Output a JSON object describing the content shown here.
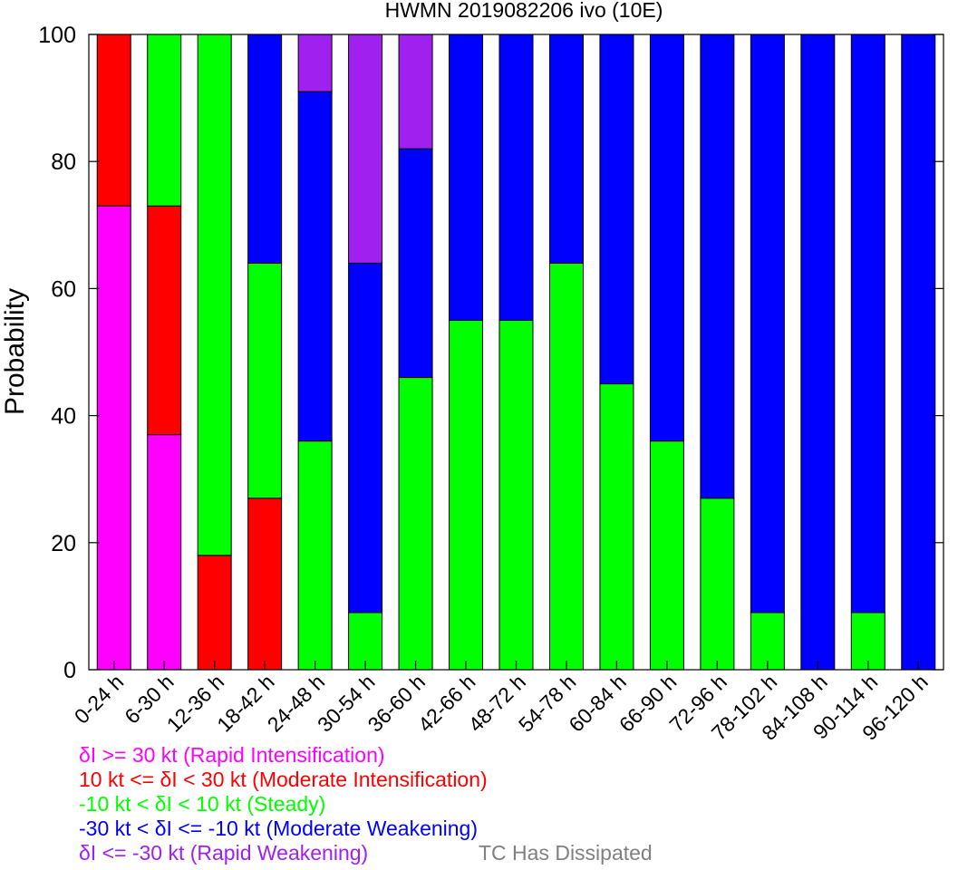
{
  "chart_data": {
    "type": "bar",
    "stacked": true,
    "title": "HWMN 2019082206 ivo (10E)",
    "ylabel": "Probability",
    "xlabel": "",
    "ylim": [
      0,
      100
    ],
    "yticks": [
      0,
      20,
      40,
      60,
      80,
      100
    ],
    "grid": false,
    "categories": [
      "0-24 h",
      "6-30 h",
      "12-36 h",
      "18-42 h",
      "24-48 h",
      "30-54 h",
      "36-60 h",
      "42-66 h",
      "48-72 h",
      "54-78 h",
      "60-84 h",
      "66-90 h",
      "72-96 h",
      "78-102 h",
      "84-108 h",
      "90-114 h",
      "96-120 h"
    ],
    "series": [
      {
        "name": "δI >= 30 kt (Rapid Intensification)",
        "color": "#ff00ff",
        "values": [
          73,
          37,
          0,
          0,
          0,
          0,
          0,
          0,
          0,
          0,
          0,
          0,
          0,
          0,
          0,
          0,
          0
        ]
      },
      {
        "name": "10 kt <= δI < 30 kt (Moderate Intensification)",
        "color": "#ff0000",
        "values": [
          27,
          36,
          18,
          27,
          0,
          0,
          0,
          0,
          0,
          0,
          0,
          0,
          0,
          0,
          0,
          0,
          0
        ]
      },
      {
        "name": "-10 kt < δI < 10 kt (Steady)",
        "color": "#00ff00",
        "values": [
          0,
          27,
          82,
          37,
          36,
          9,
          46,
          55,
          55,
          64,
          45,
          36,
          27,
          9,
          0,
          9,
          0
        ]
      },
      {
        "name": "-30 kt < δI <= -10 kt (Moderate Weakening)",
        "color": "#0000ff",
        "values": [
          0,
          0,
          0,
          36,
          55,
          55,
          36,
          45,
          45,
          36,
          55,
          64,
          73,
          91,
          100,
          91,
          100
        ]
      },
      {
        "name": "δI <= -30 kt (Rapid Weakening)",
        "color": "#a020f0",
        "values": [
          0,
          0,
          0,
          0,
          9,
          36,
          18,
          0,
          0,
          0,
          0,
          0,
          0,
          0,
          0,
          0,
          0
        ]
      }
    ],
    "dissipated_label": "TC Has Dissipated",
    "dissipated_color": "#808080"
  }
}
